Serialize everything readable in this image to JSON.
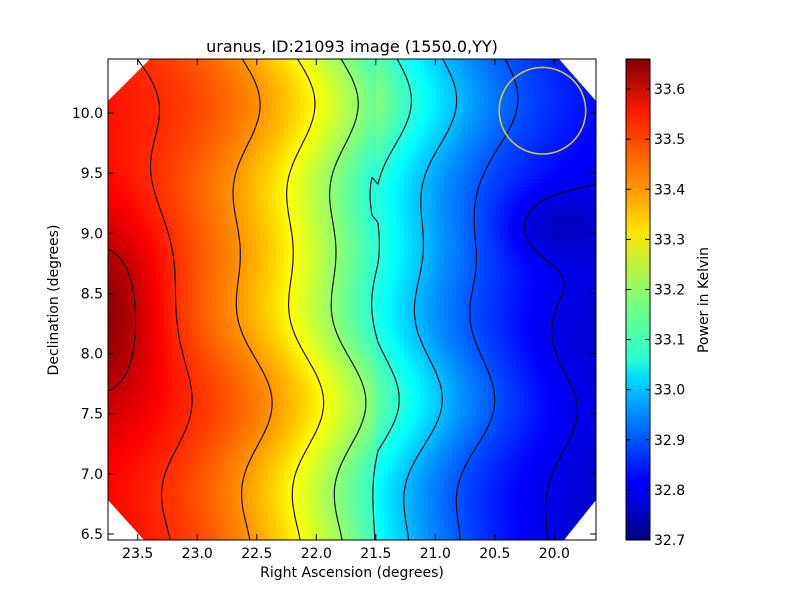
{
  "chart_data": {
    "type": "heatmap",
    "title": "uranus, ID:21093 image (1550.0,YY)",
    "xlabel": "Right Ascension (degrees)",
    "ylabel": "Declination (degrees)",
    "colorbar_label": "Power in Kelvin",
    "xlim": [
      23.75,
      19.65
    ],
    "ylim": [
      6.45,
      10.45
    ],
    "x_ticks": [
      23.5,
      23.0,
      22.5,
      22.0,
      21.5,
      21.0,
      20.5,
      20.0
    ],
    "x_tick_labels": [
      "23.5",
      "23.0",
      "22.5",
      "22.0",
      "21.5",
      "21.0",
      "20.5",
      "20.0"
    ],
    "y_ticks": [
      6.5,
      7.0,
      7.5,
      8.0,
      8.5,
      9.0,
      9.5,
      10.0
    ],
    "y_tick_labels": [
      "6.5",
      "7.0",
      "7.5",
      "8.0",
      "8.5",
      "9.0",
      "9.5",
      "10.0"
    ],
    "colorbar_range": [
      32.7,
      33.66
    ],
    "colorbar_ticks": [
      32.7,
      32.8,
      32.9,
      33.0,
      33.1,
      33.2,
      33.3,
      33.4,
      33.5,
      33.6
    ],
    "colorbar_tick_labels": [
      "32.7",
      "32.8",
      "32.9",
      "33.0",
      "33.1",
      "33.2",
      "33.3",
      "33.4",
      "33.5",
      "33.6"
    ],
    "colormap": "jet",
    "contour_color": "#000000",
    "peak": {
      "ra": 23.72,
      "dec": 8.35,
      "value": 33.65
    },
    "minimum": {
      "ra": 20.1,
      "dec": 9.0,
      "value": 32.7
    },
    "beam_circle": {
      "ra": 20.1,
      "dec": 10.02,
      "radius_deg": 0.36,
      "color": "#c8c83c"
    },
    "contour_levels": [
      33.6,
      33.5,
      33.4,
      33.3,
      33.2,
      33.1,
      33.0,
      32.9,
      32.8
    ]
  }
}
